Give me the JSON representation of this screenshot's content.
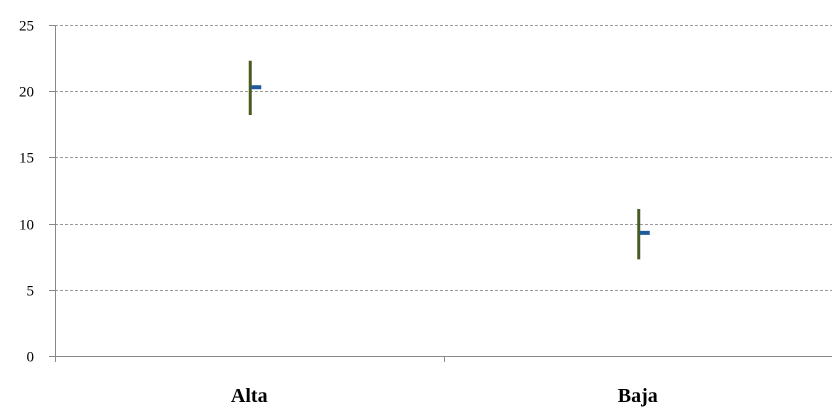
{
  "chart_data": {
    "type": "stock",
    "title": "",
    "xlabel": "",
    "ylabel": "",
    "ylim": [
      0,
      25
    ],
    "yticks": [
      0,
      5,
      10,
      15,
      20,
      25
    ],
    "ytick_labels": [
      "0",
      "5",
      "10",
      "15",
      "20",
      "25"
    ],
    "grid": true,
    "legend": "none",
    "categories": [
      "Alta",
      "Baja"
    ],
    "points": [
      {
        "category": "Alta",
        "high": 22.3,
        "low": 18.2,
        "close": 20.3
      },
      {
        "category": "Baja",
        "high": 11.1,
        "low": 7.3,
        "close": 9.3
      }
    ],
    "colors": {
      "range_line": "#4a5a23",
      "close_marker": "#1f5a9a",
      "grid": "#9a9a9a",
      "axis": "#888888"
    }
  }
}
